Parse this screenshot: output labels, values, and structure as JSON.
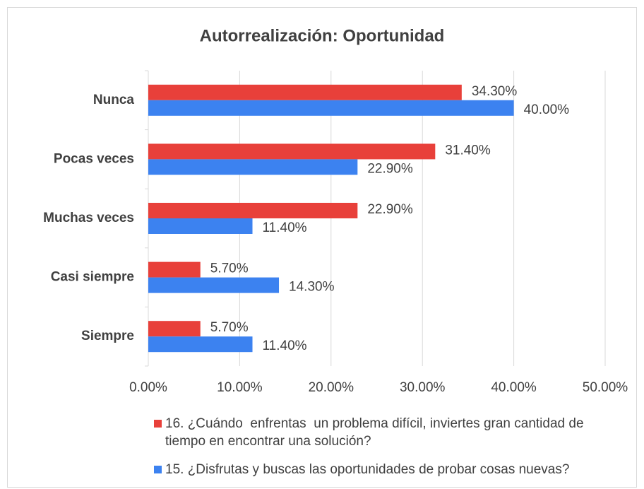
{
  "chart_data": {
    "type": "hbar",
    "title": "Autorrealización: Oportunidad",
    "categories": [
      "Nunca",
      "Pocas veces",
      "Muchas veces",
      "Casi siempre",
      "Siempre"
    ],
    "series": [
      {
        "name": "16. ¿Cuándo  enfrentas  un problema difícil, inviertes gran cantidad de tiempo en encontrar una solución?",
        "color": "#e8403a",
        "values": [
          34.3,
          31.4,
          22.9,
          5.7,
          5.7
        ],
        "value_labels": [
          "34.30%",
          "31.40%",
          "22.90%",
          "5.70%",
          "5.70%"
        ]
      },
      {
        "name": "15. ¿Disfrutas y buscas las oportunidades de probar cosas nuevas?",
        "color": "#3c82f0",
        "values": [
          40,
          22.9,
          11.4,
          14.3,
          11.4
        ],
        "value_labels": [
          "40.00%",
          "22.90%",
          "11.40%",
          "14.30%",
          "11.40%"
        ]
      }
    ],
    "xlim": [
      0,
      50
    ],
    "xticks": [
      {
        "value": 0,
        "label": "0.00%"
      },
      {
        "value": 10,
        "label": "10.00%"
      },
      {
        "value": 20,
        "label": "20.00%"
      },
      {
        "value": 30,
        "label": "30.00%"
      },
      {
        "value": 40,
        "label": "40.00%"
      },
      {
        "value": 50,
        "label": "50.00%"
      }
    ],
    "grid": true,
    "legend": "bottom"
  }
}
